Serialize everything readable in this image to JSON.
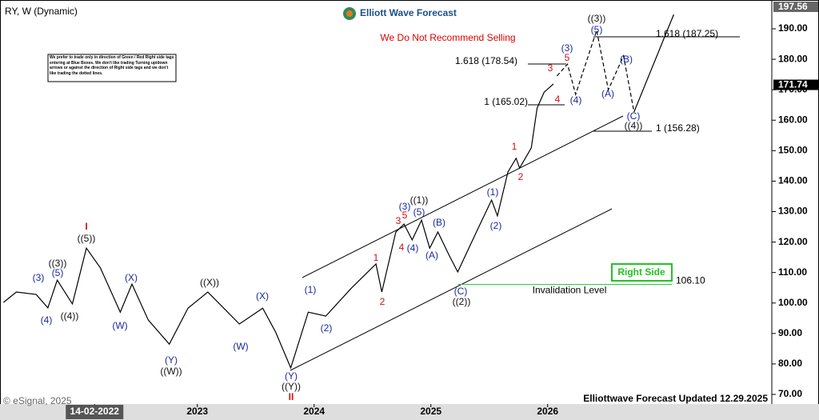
{
  "chart_data": {
    "type": "line",
    "title": "RY, W (Dynamic)",
    "brand": "Elliott Wave Forecast",
    "warning": "We Do Not Recommend Selling",
    "note": "We prefer to trade only in direction of Green / Red Right side tags entering at Blue Boxes. We don't like trading Turning up/down arrows or against the direction of Right side tags and we don't like trading the dotted lines.",
    "right_side": "Right Side",
    "footer": "Elliottwave Forecast Updated 12.29.2025",
    "copyright": "© eSignal, 2025",
    "xlim": [
      2021.31,
      2027.92
    ],
    "xticks": [
      {
        "value": 2022.12,
        "label": "14-02-2022"
      },
      2023,
      2024,
      2025,
      2026
    ],
    "ylim": [
      66.85,
      198.5
    ],
    "yticks": [
      {
        "value": 70,
        "label": "70.00"
      },
      {
        "value": 80,
        "label": "80.00"
      },
      {
        "value": 90,
        "label": "90.00"
      },
      {
        "value": 100,
        "label": "100.00"
      },
      {
        "value": 110,
        "label": "110.00"
      },
      {
        "value": 120,
        "label": "120.00"
      },
      {
        "value": 130,
        "label": "130.00"
      },
      {
        "value": 140,
        "label": "140.00"
      },
      {
        "value": 150,
        "label": "150.00"
      },
      {
        "value": 160,
        "label": "160.00"
      },
      {
        "value": 170,
        "label": "170.00"
      },
      {
        "value": 180,
        "label": "180.00"
      },
      {
        "value": 190,
        "label": "190.00"
      }
    ],
    "price_labels": [
      {
        "value": 197.56,
        "label": "197.56"
      },
      {
        "value": 171.74,
        "label": "171.74"
      }
    ],
    "invalidation": {
      "text": "Invalidation Level",
      "value": 106.1,
      "label": "106.10",
      "color": "#2ecc40"
    },
    "series": [
      {
        "color": "#000000",
        "style": "solid",
        "x": [
          2021.34,
          2021.45,
          2021.62,
          2021.72,
          2021.8,
          2021.93,
          2022.05,
          2022.17,
          2022.34,
          2022.44,
          2022.58,
          2022.76,
          2022.92,
          2023.09,
          2023.26,
          2023.36,
          2023.56,
          2023.67,
          2023.8,
          2023.95,
          2024.1,
          2024.32,
          2024.53,
          2024.58,
          2024.7,
          2024.77,
          2024.84,
          2024.92,
          2024.99,
          2025.06,
          2025.16,
          2025.23,
          2025.39,
          2025.52,
          2025.57,
          2025.66,
          2025.73,
          2025.76,
          2025.86,
          2025.91,
          2025.97,
          2026.05
        ],
        "values": [
          100.2,
          103.6,
          102.8,
          98.4,
          107.5,
          99.7,
          118,
          111.5,
          97,
          106.2,
          94.4,
          86.5,
          98.3,
          103.6,
          97,
          93.1,
          98.3,
          90.5,
          78.7,
          97,
          95.7,
          104.9,
          112.8,
          103.6,
          123.3,
          125.9,
          120.7,
          127.2,
          118,
          123.3,
          115.4,
          110.2,
          123.3,
          133.8,
          128.6,
          143,
          147.5,
          144.3,
          150.9,
          164,
          169.2,
          171.9
        ]
      },
      {
        "color": "#000000",
        "style": "dashed",
        "x": [
          2026.08,
          2026.17,
          2026.24,
          2026.42,
          2026.52,
          2026.65,
          2026.74
        ],
        "values": [
          174.5,
          178.4,
          168.5,
          189.5,
          170,
          181.1,
          162.7
        ]
      },
      {
        "color": "#000000",
        "style": "solid",
        "x": [
          2026.74,
          2027.08
        ],
        "values": [
          162.7,
          194.7
        ]
      }
    ],
    "fib_labels": [
      "1.618 (178.54)",
      "1 (165.02)",
      "1.618 (187.25)",
      "1 (156.28)"
    ],
    "waves": [
      "((3))",
      "(5)",
      "(3)",
      "(4)",
      "((4))",
      "((5))",
      "I",
      "(W)",
      "(X)",
      "(Y)",
      "((W))",
      "((X))",
      "(W)",
      "(X)",
      "(Y)",
      "((Y))",
      "II",
      "(1)",
      "(2)",
      "1",
      "2",
      "3",
      "5",
      "(3)",
      "((1))",
      "(5)",
      "4",
      "(4)",
      "(B)",
      "(A)",
      "(C)",
      "((2))",
      "(1)",
      "(2)",
      "1",
      "2",
      "3",
      "5",
      "4",
      "(3)",
      "(4)",
      "((3))",
      "(5)",
      "(B)",
      "(A)",
      "(C)",
      "((4))"
    ]
  }
}
